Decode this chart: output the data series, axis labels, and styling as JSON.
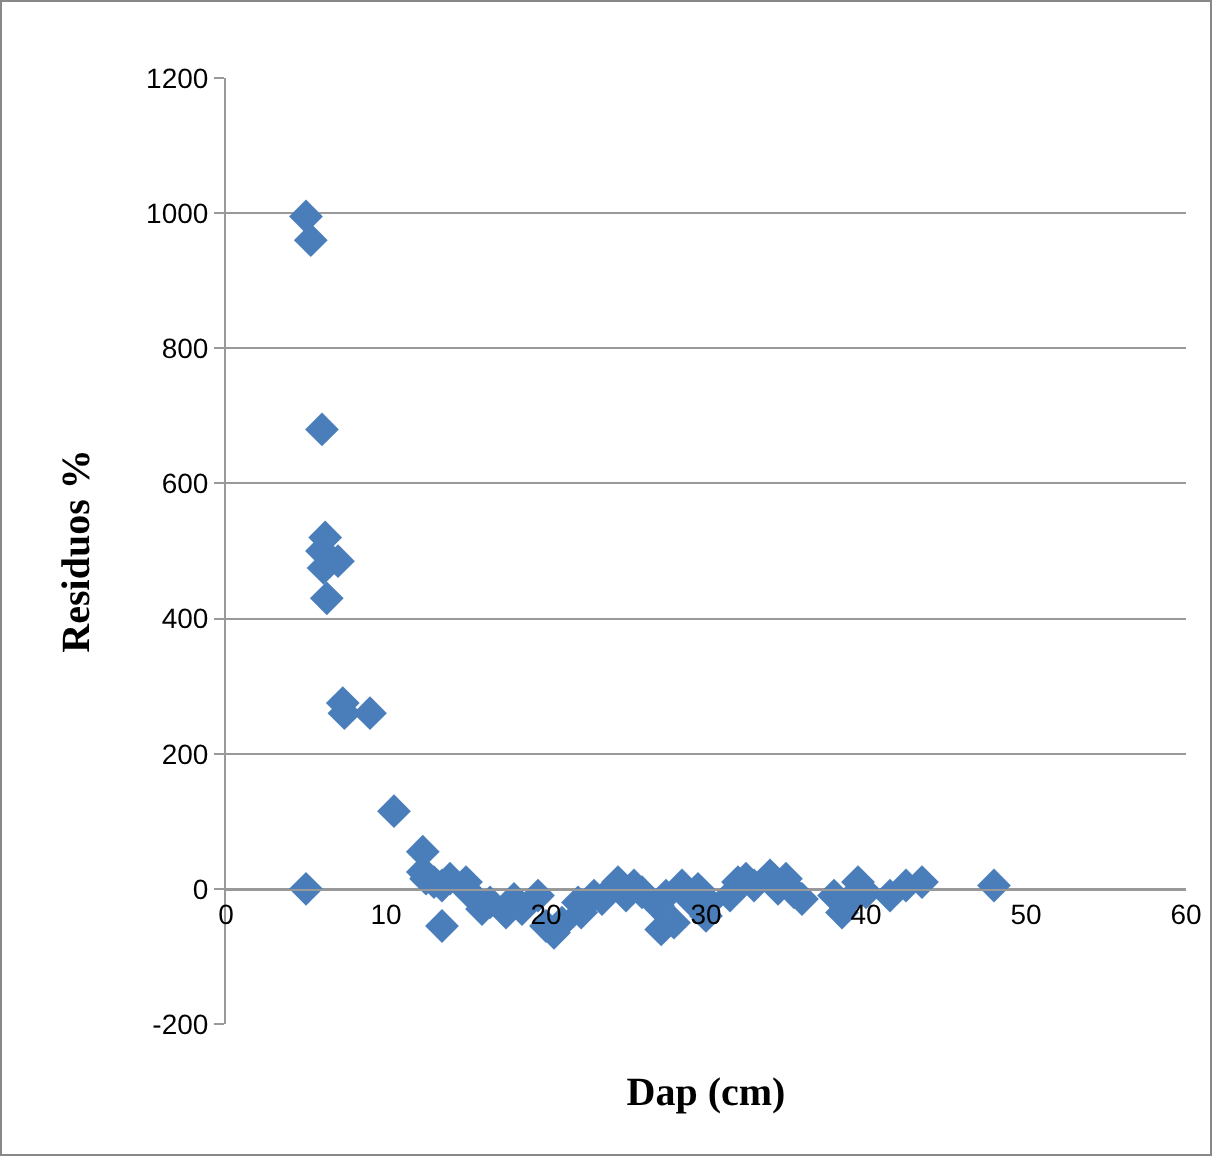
{
  "chart_data": {
    "type": "scatter",
    "xlabel": "Dap (cm)",
    "ylabel": "Residuos %",
    "marker": "diamond",
    "grid": "y",
    "xlim": [
      0,
      60
    ],
    "xticks": [
      0,
      10,
      20,
      30,
      40,
      50,
      60
    ],
    "ylim": [
      -200,
      1200
    ],
    "yticks": [
      -200,
      0,
      200,
      400,
      600,
      800,
      1000,
      1200
    ],
    "series": [
      {
        "color": "#4a7ebb",
        "x": [
          5,
          5.3,
          6,
          6.2,
          6,
          6.1,
          6.3,
          7,
          7.3,
          7.4,
          9,
          10.5,
          5,
          12.3,
          12.3,
          12.5,
          13,
          13.5,
          14,
          13.5,
          15,
          15.2,
          16,
          16.5,
          17.5,
          18,
          18.5,
          19.5,
          20,
          20.5,
          21,
          22,
          22.2,
          23,
          23.5,
          24.5,
          25,
          25.5,
          26,
          27,
          27.2,
          27.5,
          28,
          28.5,
          29,
          29.5,
          30,
          30.2,
          31.5,
          32,
          32.5,
          33,
          34,
          34.5,
          35,
          35.5,
          36,
          38,
          38.5,
          39,
          39.5,
          40,
          41.5,
          42.5,
          43.5,
          48
        ],
        "values": [
          995,
          960,
          680,
          520,
          500,
          475,
          430,
          485,
          275,
          260,
          260,
          115,
          0,
          55,
          25,
          15,
          10,
          5,
          15,
          -55,
          10,
          -5,
          -30,
          -20,
          -35,
          -15,
          -30,
          -10,
          -55,
          -65,
          -50,
          -20,
          -35,
          -10,
          -15,
          10,
          -10,
          5,
          -5,
          -25,
          -60,
          -10,
          -50,
          5,
          -15,
          0,
          -40,
          -20,
          -10,
          10,
          15,
          5,
          20,
          0,
          15,
          -5,
          -15,
          -10,
          -35,
          -15,
          10,
          -5,
          -10,
          5,
          10,
          5
        ]
      }
    ]
  }
}
